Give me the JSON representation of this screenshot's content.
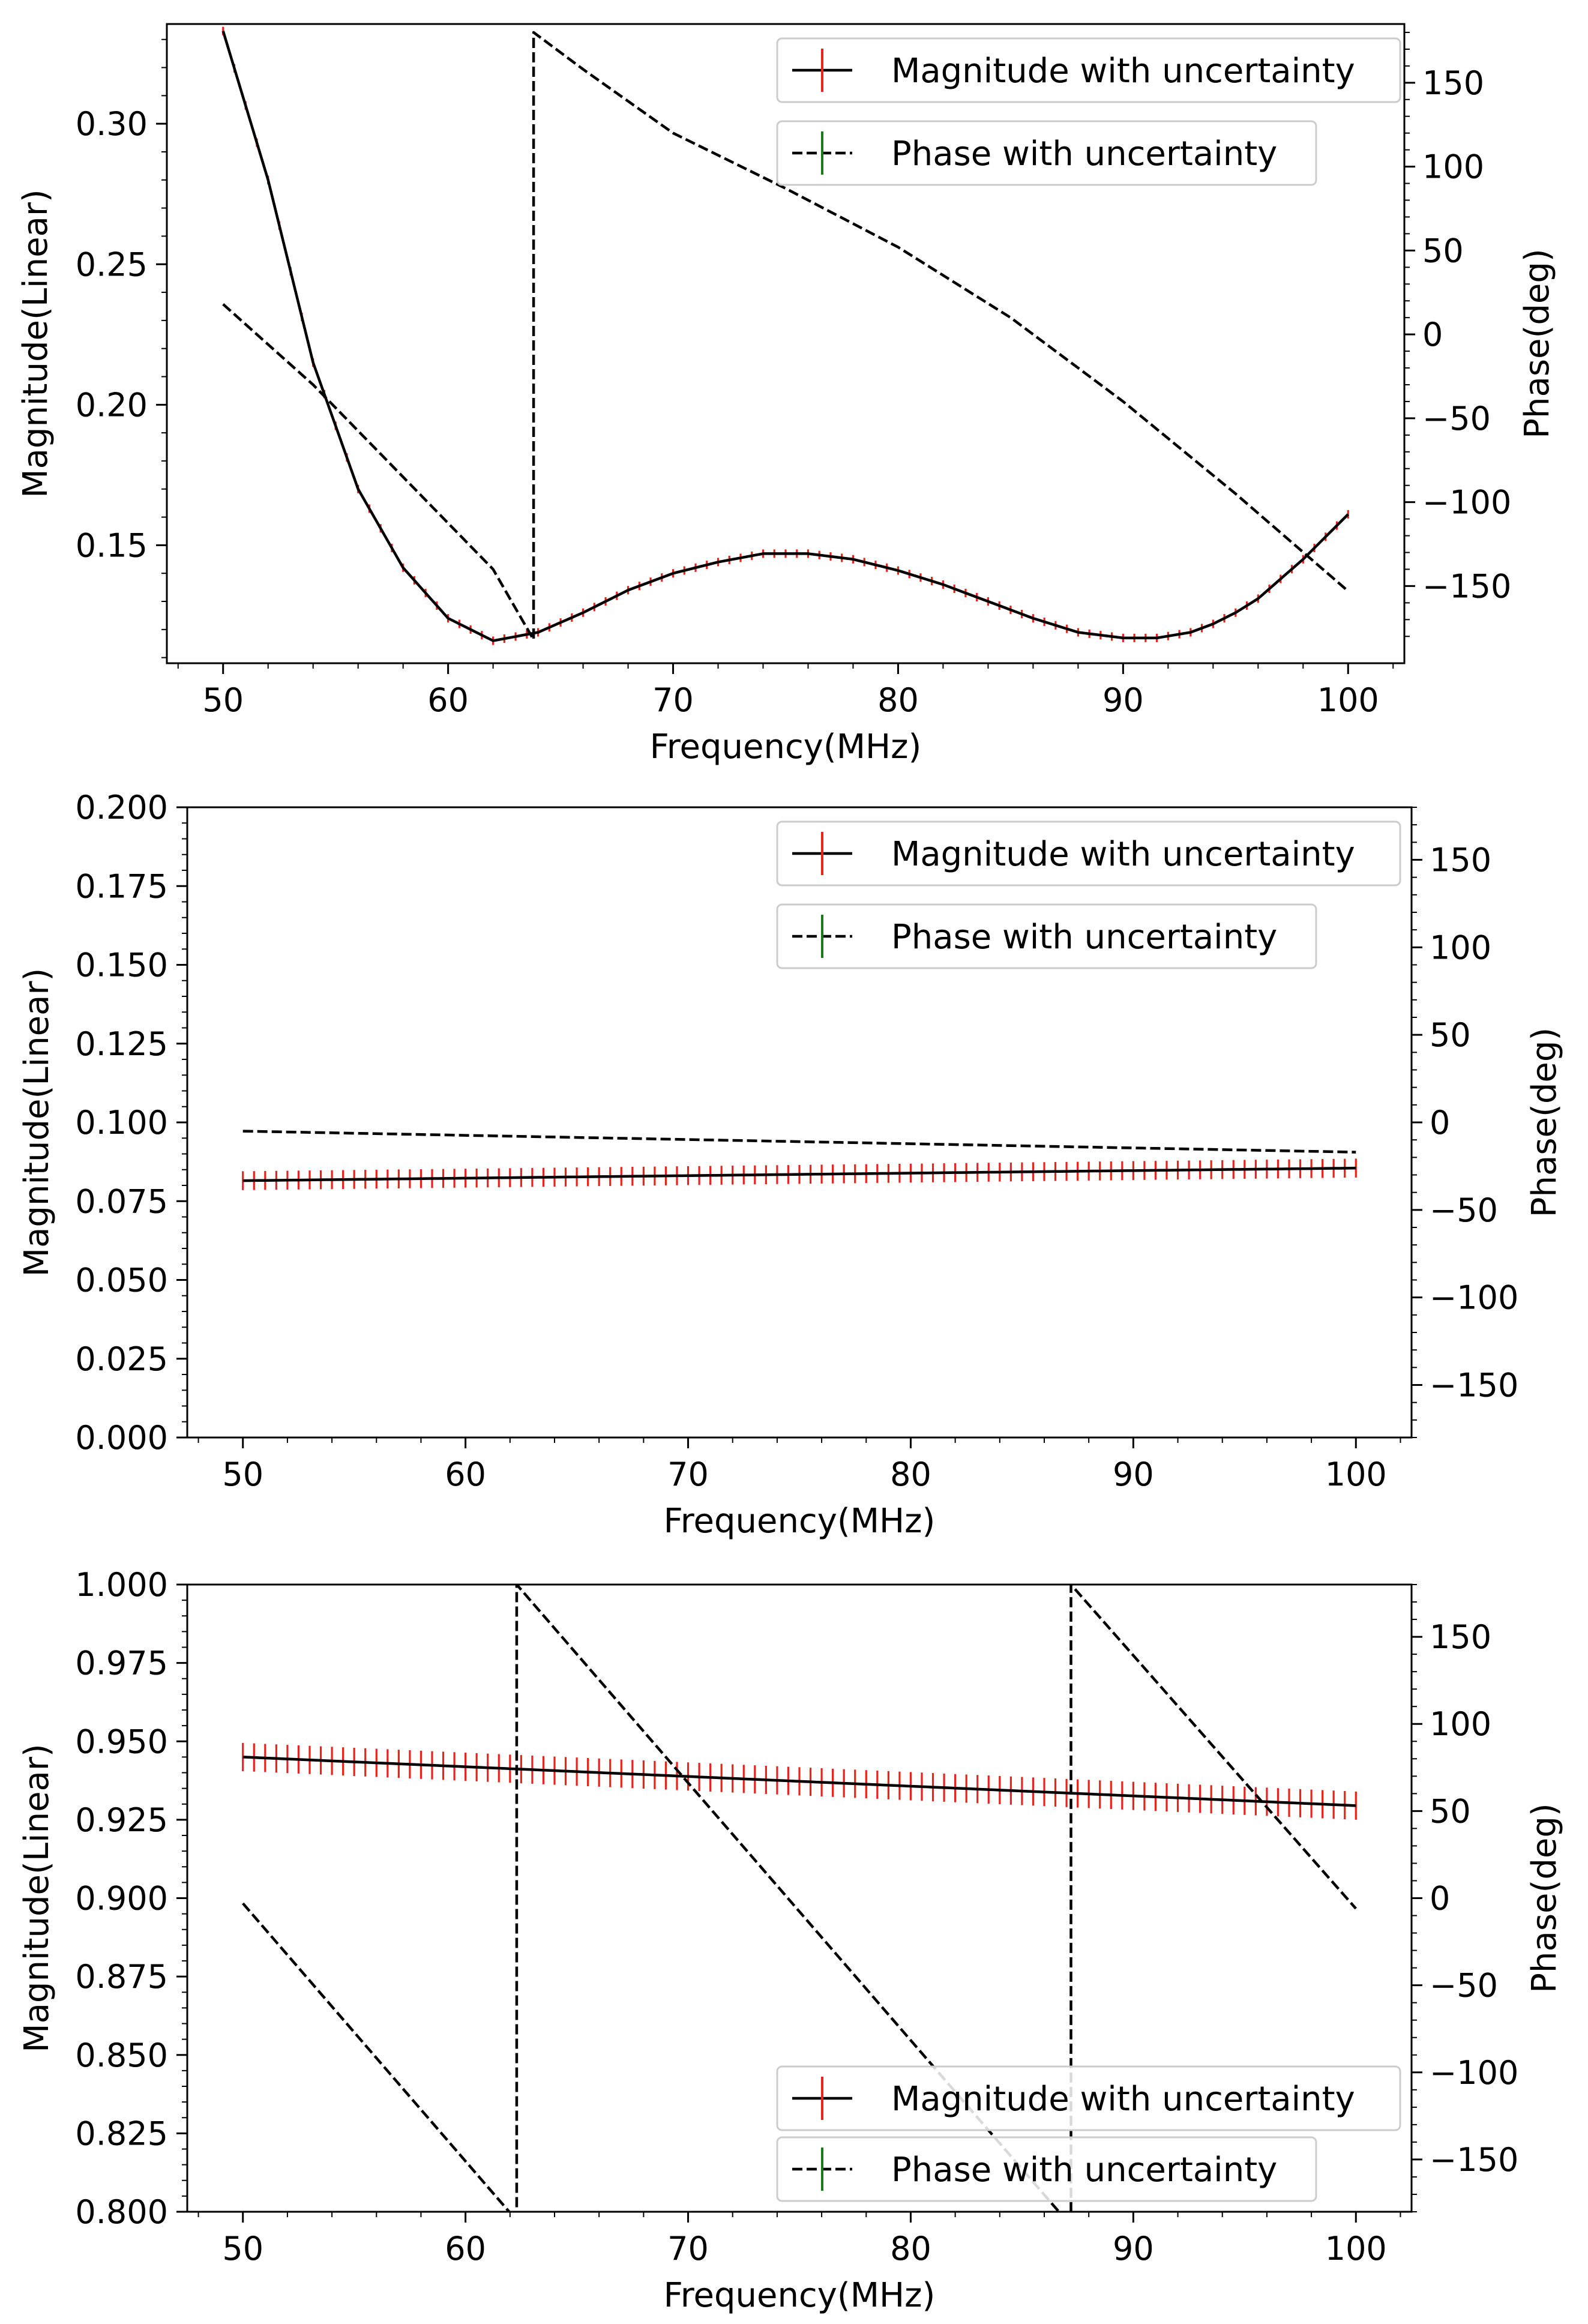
{
  "chart_data": [
    {
      "type": "line",
      "title": "",
      "xlabel": "Frequency(MHz)",
      "ylabel": "Magnitude(Linear)",
      "y2label": "Phase(deg)",
      "xlim": [
        47.5,
        102.5
      ],
      "ylim": [
        0.108,
        0.3355
      ],
      "y2lim": [
        -196,
        185
      ],
      "xticks": [
        "50",
        "60",
        "70",
        "80",
        "90",
        "100"
      ],
      "yticks": [
        "0.15",
        "0.20",
        "0.25",
        "0.30"
      ],
      "y2ticks": [
        "150",
        "100",
        "50",
        "0",
        "−50",
        "−100",
        "−150"
      ],
      "legend": {
        "location": "upper-right",
        "entries": [
          "Magnitude with uncertainty",
          "Phase with uncertainty"
        ]
      },
      "series": [
        {
          "name": "Magnitude with uncertainty",
          "axis": "left",
          "uncertainty": 0.0015,
          "x": [
            50,
            52,
            54,
            56,
            58,
            60,
            62,
            64,
            66,
            68,
            70,
            72,
            74,
            76,
            78,
            80,
            82,
            84,
            86,
            88,
            90,
            91.5,
            93,
            94,
            95,
            96,
            97,
            98,
            99,
            100
          ],
          "values": [
            0.333,
            0.28,
            0.215,
            0.17,
            0.142,
            0.124,
            0.116,
            0.119,
            0.126,
            0.134,
            0.14,
            0.144,
            0.147,
            0.147,
            0.145,
            0.141,
            0.136,
            0.13,
            0.124,
            0.119,
            0.117,
            0.117,
            0.119,
            0.122,
            0.126,
            0.131,
            0.138,
            0.145,
            0.153,
            0.161
          ]
        },
        {
          "name": "Phase with uncertainty",
          "axis": "right",
          "x": [
            50,
            54,
            58,
            62,
            63.8,
            63.8,
            66,
            70,
            75,
            80,
            85,
            90,
            95,
            100
          ],
          "values": [
            18,
            -30,
            -85,
            -140,
            -182,
            180,
            158,
            120,
            87,
            52,
            10,
            -40,
            -95,
            -153
          ]
        }
      ]
    },
    {
      "type": "line",
      "title": "",
      "xlabel": "Frequency(MHz)",
      "ylabel": "Magnitude(Linear)",
      "y2label": "Phase(deg)",
      "xlim": [
        47.5,
        102.5
      ],
      "ylim": [
        0.0,
        0.2
      ],
      "y2lim": [
        -180,
        180
      ],
      "xticks": [
        "50",
        "60",
        "70",
        "80",
        "90",
        "100"
      ],
      "yticks": [
        "0.000",
        "0.025",
        "0.050",
        "0.075",
        "0.100",
        "0.125",
        "0.150",
        "0.175",
        "0.200"
      ],
      "y2ticks": [
        "150",
        "100",
        "50",
        "0",
        "−50",
        "−100",
        "−150"
      ],
      "legend": {
        "location": "upper-right",
        "entries": [
          "Magnitude with uncertainty",
          "Phase with uncertainty"
        ]
      },
      "series": [
        {
          "name": "Magnitude with uncertainty",
          "axis": "left",
          "uncertainty": 0.003,
          "x": [
            50,
            100
          ],
          "values": [
            0.0815,
            0.0855
          ]
        },
        {
          "name": "Phase with uncertainty",
          "axis": "right",
          "x": [
            50,
            100
          ],
          "values": [
            -5,
            -17
          ]
        }
      ]
    },
    {
      "type": "line",
      "title": "",
      "xlabel": "Frequency(MHz)",
      "ylabel": "Magnitude(Linear)",
      "y2label": "Phase(deg)",
      "xlim": [
        47.5,
        102.5
      ],
      "ylim": [
        0.8,
        1.0
      ],
      "y2lim": [
        -180,
        180
      ],
      "xticks": [
        "50",
        "60",
        "70",
        "80",
        "90",
        "100"
      ],
      "yticks": [
        "0.800",
        "0.825",
        "0.850",
        "0.875",
        "0.900",
        "0.925",
        "0.950",
        "0.975",
        "1.000"
      ],
      "y2ticks": [
        "150",
        "100",
        "50",
        "0",
        "−50",
        "−100",
        "−150"
      ],
      "legend": {
        "location": "lower-right",
        "entries": [
          "Magnitude with uncertainty",
          "Phase with uncertainty"
        ]
      },
      "series": [
        {
          "name": "Magnitude with uncertainty",
          "axis": "left",
          "uncertainty": 0.0045,
          "x": [
            50,
            100
          ],
          "values": [
            0.945,
            0.9295
          ]
        },
        {
          "name": "Phase with uncertainty",
          "axis": "right",
          "x": [
            50,
            62.3,
            62.3,
            87.2,
            87.2,
            100
          ],
          "values": [
            -3,
            -185,
            180,
            -188,
            180,
            -6
          ]
        }
      ]
    }
  ]
}
